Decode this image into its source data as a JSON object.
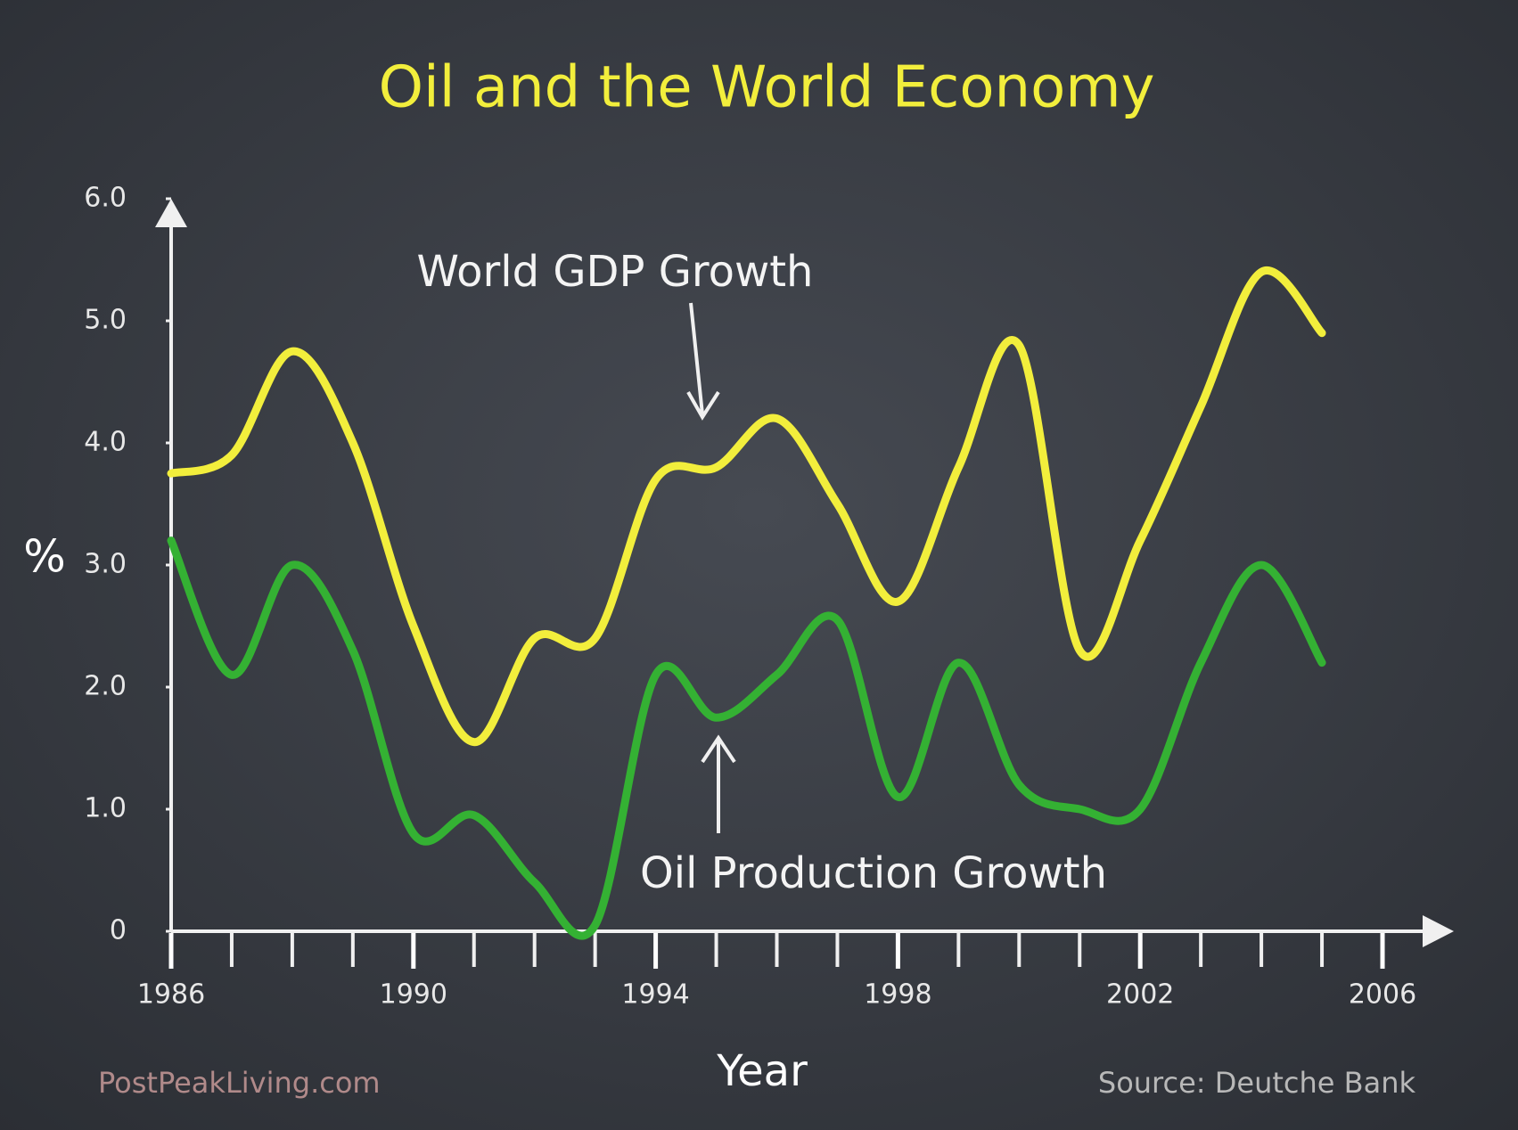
{
  "chart_data": {
    "type": "line",
    "title": "Oil and the World Economy",
    "y_label": "%",
    "x_label": "Year",
    "annotations": [
      "World GDP Growth",
      "Oil Production Growth"
    ],
    "credit": "PostPeakLiving.com",
    "source": "Source: Deutche Bank",
    "x": [
      1986,
      1987,
      1988,
      1989,
      1990,
      1991,
      1992,
      1993,
      1994,
      1995,
      1996,
      1997,
      1998,
      1999,
      2000,
      2001,
      2002,
      2003,
      2004,
      2005
    ],
    "series": [
      {
        "name": "World GDP Growth",
        "color": "#f2ee3c",
        "values": [
          3.75,
          3.9,
          4.75,
          4.0,
          2.5,
          1.55,
          2.4,
          2.4,
          3.7,
          3.8,
          4.2,
          3.5,
          2.7,
          3.8,
          4.8,
          2.3,
          3.2,
          4.3,
          5.4,
          4.9
        ]
      },
      {
        "name": "Oil Production Growth",
        "color": "#34b133",
        "values": [
          3.2,
          2.1,
          3.0,
          2.3,
          0.8,
          0.95,
          0.4,
          0.05,
          2.1,
          1.75,
          2.1,
          2.55,
          1.1,
          2.2,
          1.2,
          1.0,
          1.0,
          2.2,
          3.0,
          2.2
        ]
      }
    ],
    "xlim": [
      1986,
      2006
    ],
    "xticks": [
      1986,
      1990,
      1994,
      1998,
      2002,
      2006
    ],
    "ylim": [
      0,
      6
    ],
    "yticks": [
      0,
      {
        "value": 1,
        "label": "1.0"
      },
      {
        "value": 2,
        "label": "2.0"
      },
      {
        "value": 3,
        "label": "3.0"
      },
      {
        "value": 4,
        "label": "4.0"
      },
      {
        "value": 5,
        "label": "5.0"
      },
      {
        "value": 6,
        "label": "6.0"
      }
    ],
    "grid": false
  }
}
